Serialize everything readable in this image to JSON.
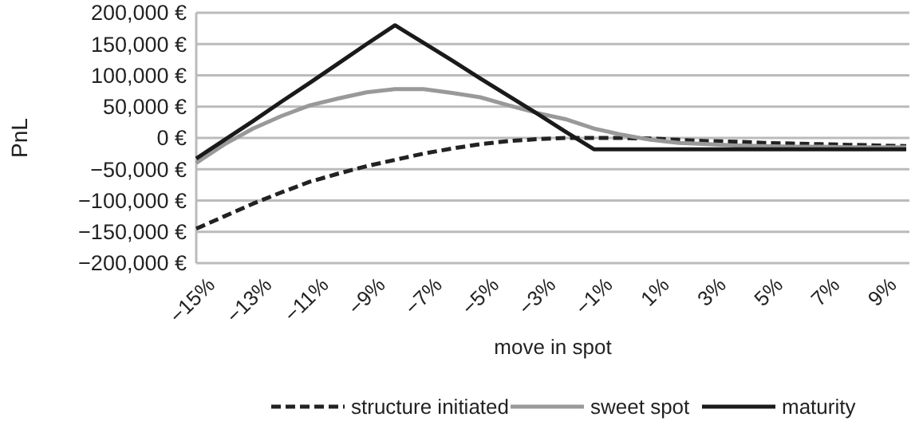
{
  "chart_data": {
    "type": "line",
    "xlabel": "move in spot",
    "ylabel": "PnL",
    "categories": [
      "−15%",
      null,
      "−13%",
      null,
      "−11%",
      null,
      "−9%",
      null,
      "−7%",
      null,
      "−5%",
      null,
      "−3%",
      null,
      "−1%",
      null,
      "1%",
      null,
      "3%",
      null,
      "5%",
      null,
      "7%",
      null,
      "9%",
      null
    ],
    "series": [
      {
        "name": "structure initiated",
        "color": "#222222",
        "line_style": "dashed",
        "values": [
          -145000,
          -125000,
          -105000,
          -87000,
          -70000,
          -57000,
          -45000,
          -35000,
          -25000,
          -17000,
          -10000,
          -5000,
          -2000,
          0,
          0,
          0,
          -1000,
          -3000,
          -5000,
          -6000,
          -8000,
          -9000,
          -10000,
          -11000,
          -12000,
          -13000
        ]
      },
      {
        "name": "sweet spot",
        "color": "#999999",
        "line_style": "solid",
        "values": [
          -40000,
          -10000,
          15000,
          35000,
          52000,
          63000,
          73000,
          78000,
          78000,
          72000,
          65000,
          52000,
          40000,
          30000,
          15000,
          5000,
          -3000,
          -8000,
          -10000,
          -12000,
          -13000,
          -14000,
          -14000,
          -15000,
          -15000,
          -15000
        ]
      },
      {
        "name": "maturity",
        "color": "#1a1a1a",
        "line_style": "solid",
        "values": [
          -33000,
          -3000,
          27000,
          58000,
          88000,
          119000,
          150000,
          180000,
          152000,
          124000,
          95000,
          67000,
          39000,
          10000,
          -18000,
          -18000,
          -18000,
          -18000,
          -18000,
          -18000,
          -18000,
          -18000,
          -18000,
          -18000,
          -18000,
          -18000
        ]
      }
    ],
    "ylim": [
      -200000,
      200000
    ],
    "yticks": [
      {
        "value": -200000,
        "label": "−200,000 €"
      },
      {
        "value": -150000,
        "label": "−150,000 €"
      },
      {
        "value": -100000,
        "label": "−100,000 €"
      },
      {
        "value": -50000,
        "label": "−50,000 €"
      },
      {
        "value": 0,
        "label": "0 €"
      },
      {
        "value": 50000,
        "label": "50,000 €"
      },
      {
        "value": 100000,
        "label": "100,000 €"
      },
      {
        "value": 150000,
        "label": "150,000 €"
      },
      {
        "value": 200000,
        "label": "200,000 €"
      }
    ],
    "grid": "y",
    "legend": "bottom"
  }
}
